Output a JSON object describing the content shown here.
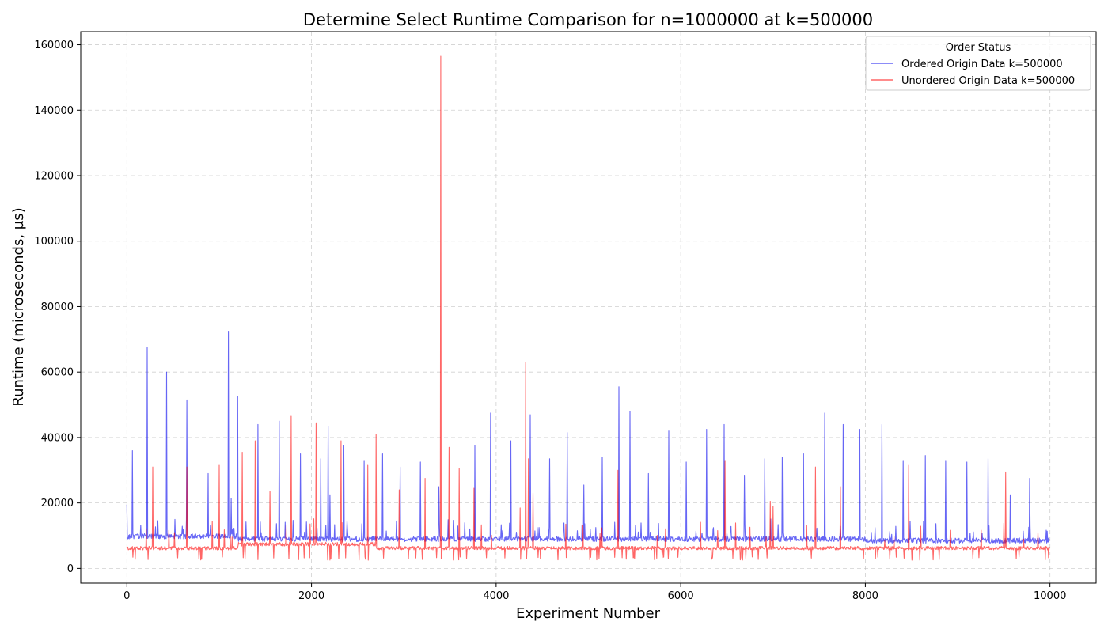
{
  "chart_data": {
    "type": "line",
    "title": "Determine Select Runtime Comparison for n=1000000 at k=500000",
    "xlabel": "Experiment Number",
    "ylabel": "Runtime (microseconds, µs)",
    "xlim": [
      -500,
      10500
    ],
    "ylim": [
      -4500,
      164000
    ],
    "xticks": [
      0,
      2000,
      4000,
      6000,
      8000,
      10000
    ],
    "yticks": [
      0,
      20000,
      40000,
      60000,
      80000,
      100000,
      120000,
      140000,
      160000
    ],
    "grid": true,
    "legend": {
      "title": "Order Status",
      "placement": "top-right"
    },
    "series": [
      {
        "name": "Ordered Origin Data k=500000",
        "color": "#0000ee",
        "baseline": 9000,
        "x_range": [
          0,
          10000
        ],
        "peaks": [
          [
            0,
            19500
          ],
          [
            60,
            36000
          ],
          [
            220,
            67500
          ],
          [
            430,
            60000
          ],
          [
            650,
            51500
          ],
          [
            880,
            29000
          ],
          [
            1100,
            72500
          ],
          [
            1130,
            21500
          ],
          [
            1200,
            52500
          ],
          [
            1420,
            44000
          ],
          [
            1650,
            45000
          ],
          [
            1880,
            35000
          ],
          [
            2100,
            33500
          ],
          [
            2180,
            43500
          ],
          [
            2200,
            22500
          ],
          [
            2350,
            37500
          ],
          [
            2570,
            33000
          ],
          [
            2770,
            35000
          ],
          [
            2960,
            31000
          ],
          [
            3180,
            32500
          ],
          [
            3380,
            25000
          ],
          [
            3770,
            37500
          ],
          [
            3940,
            47500
          ],
          [
            4160,
            39000
          ],
          [
            4370,
            47000
          ],
          [
            4580,
            33500
          ],
          [
            4770,
            41500
          ],
          [
            4950,
            25500
          ],
          [
            5150,
            34000
          ],
          [
            5330,
            55500
          ],
          [
            5450,
            48000
          ],
          [
            5650,
            29000
          ],
          [
            5870,
            42000
          ],
          [
            6060,
            32500
          ],
          [
            6280,
            42500
          ],
          [
            6470,
            44000
          ],
          [
            6690,
            28500
          ],
          [
            6910,
            33500
          ],
          [
            7100,
            34000
          ],
          [
            7330,
            35000
          ],
          [
            7560,
            47500
          ],
          [
            7760,
            44000
          ],
          [
            7940,
            42500
          ],
          [
            8180,
            44000
          ],
          [
            8410,
            33000
          ],
          [
            8650,
            34500
          ],
          [
            8870,
            33000
          ],
          [
            9100,
            32500
          ],
          [
            9330,
            33500
          ],
          [
            9570,
            22500
          ],
          [
            9780,
            27500
          ]
        ]
      },
      {
        "name": "Unordered Origin Data k=500000",
        "color": "#ff0000",
        "baseline": 6200,
        "x_range": [
          0,
          10000
        ],
        "peaks": [
          [
            280,
            31000
          ],
          [
            650,
            31000
          ],
          [
            1000,
            31500
          ],
          [
            1250,
            35500
          ],
          [
            1390,
            39000
          ],
          [
            1550,
            23500
          ],
          [
            1780,
            46500
          ],
          [
            2050,
            44500
          ],
          [
            2320,
            39000
          ],
          [
            2610,
            31500
          ],
          [
            2700,
            41000
          ],
          [
            2950,
            24000
          ],
          [
            3230,
            27500
          ],
          [
            3400,
            156500
          ],
          [
            3490,
            37000
          ],
          [
            3600,
            30500
          ],
          [
            3760,
            24500
          ],
          [
            4320,
            63000
          ],
          [
            4350,
            33500
          ],
          [
            4400,
            23000
          ],
          [
            4260,
            18500
          ],
          [
            5320,
            30000
          ],
          [
            6480,
            33000
          ],
          [
            6970,
            20500
          ],
          [
            7000,
            19000
          ],
          [
            7460,
            31000
          ],
          [
            7730,
            25000
          ],
          [
            8470,
            31500
          ],
          [
            9520,
            29500
          ]
        ]
      }
    ]
  }
}
